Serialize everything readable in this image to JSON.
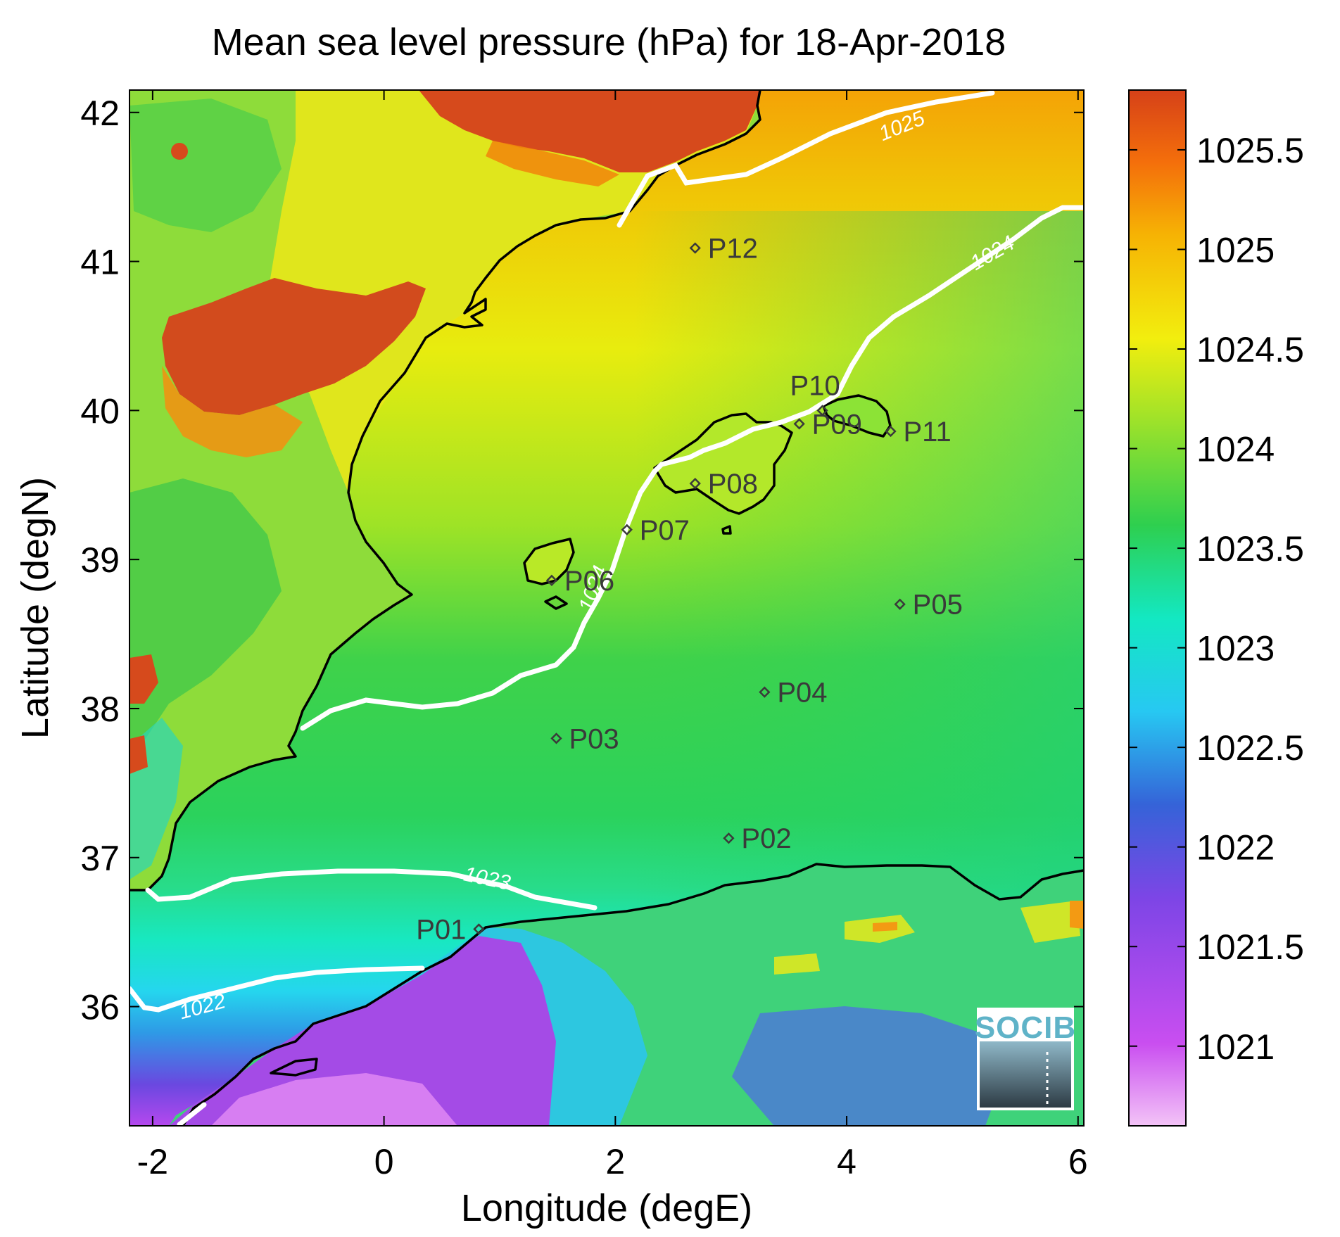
{
  "title": "Mean sea level pressure (hPa) for 18-Apr-2018",
  "xlabel": "Longitude (degE)",
  "ylabel": "Latitude (degN)",
  "logo_text": "SOCIB",
  "chart_data": {
    "type": "heatmap",
    "variable": "Mean sea level pressure",
    "unit": "hPa",
    "date": "18-Apr-2018",
    "xlim": [
      -2.2,
      6.05
    ],
    "ylim": [
      35.2,
      42.15
    ],
    "x_ticks": [
      -2,
      0,
      2,
      4,
      6
    ],
    "y_ticks": [
      36,
      37,
      38,
      39,
      40,
      41,
      42
    ],
    "colorbar": {
      "range": [
        1020.6,
        1025.8
      ],
      "ticks": [
        1021,
        1021.5,
        1022,
        1022.5,
        1023,
        1023.5,
        1024,
        1024.5,
        1025,
        1025.5
      ],
      "colors": [
        "#f3c3f7",
        "#c94ef0",
        "#7d45e6",
        "#3563d8",
        "#27c8f2",
        "#13e8c2",
        "#2ecf4f",
        "#9de22a",
        "#f2ee0e",
        "#f6b304",
        "#f46f0b",
        "#d64118"
      ]
    },
    "contours": [
      {
        "level": 1022,
        "label": "1022"
      },
      {
        "level": 1023,
        "label": "1023"
      },
      {
        "level": 1024,
        "label": "1024"
      },
      {
        "level": 1025,
        "label": "1025"
      }
    ],
    "stations": [
      {
        "name": "P01",
        "lon": 0.82,
        "lat": 36.52
      },
      {
        "name": "P02",
        "lon": 2.98,
        "lat": 37.13
      },
      {
        "name": "P03",
        "lon": 1.49,
        "lat": 37.8
      },
      {
        "name": "P04",
        "lon": 3.29,
        "lat": 38.11
      },
      {
        "name": "P05",
        "lon": 4.46,
        "lat": 38.7
      },
      {
        "name": "P06",
        "lon": 1.45,
        "lat": 38.86
      },
      {
        "name": "P07",
        "lon": 2.1,
        "lat": 39.2
      },
      {
        "name": "P08",
        "lon": 2.69,
        "lat": 39.51
      },
      {
        "name": "P09",
        "lon": 3.59,
        "lat": 39.91
      },
      {
        "name": "P10",
        "lon": 3.79,
        "lat": 40.0
      },
      {
        "name": "P11",
        "lon": 4.38,
        "lat": 39.86
      },
      {
        "name": "P12",
        "lon": 2.69,
        "lat": 41.09
      }
    ]
  }
}
